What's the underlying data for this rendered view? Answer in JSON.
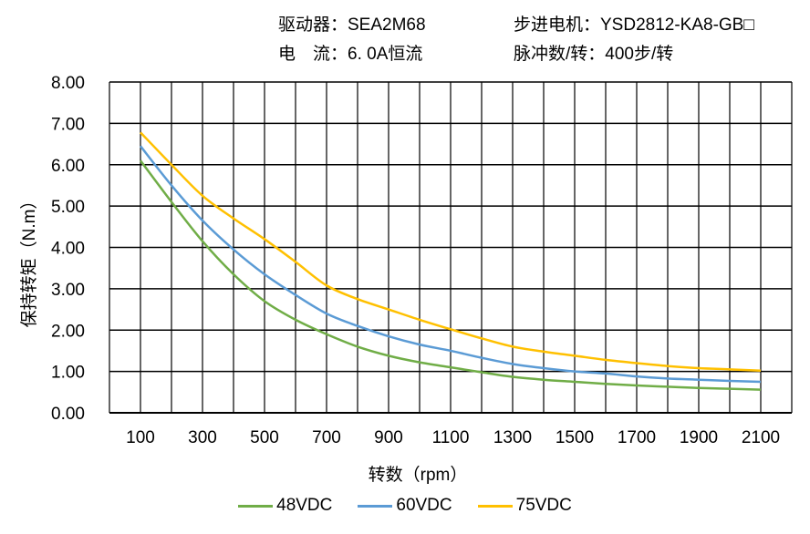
{
  "header": {
    "driver": "驱动器：SEA2M68",
    "motor": "步进电机：YSD2812-KA8-GB□",
    "current": "电　流：6. 0A恒流",
    "pulses": "脉冲数/转：400步/转"
  },
  "chart_data": {
    "type": "line",
    "title": "",
    "xlabel": "转数（rpm）",
    "ylabel": "保持转矩（N.m）",
    "xlim": [
      0,
      2200
    ],
    "ylim": [
      0,
      8
    ],
    "grid": true,
    "legend": "bottom",
    "x_ticks": [
      "100",
      "300",
      "500",
      "700",
      "900",
      "1100",
      "1300",
      "1500",
      "1700",
      "1900",
      "2100"
    ],
    "y_ticks": [
      "0.00",
      "1.00",
      "2.00",
      "3.00",
      "4.00",
      "5.00",
      "6.00",
      "7.00",
      "8.00"
    ],
    "x": [
      100,
      200,
      300,
      400,
      500,
      600,
      700,
      800,
      900,
      1000,
      1100,
      1200,
      1300,
      1400,
      1500,
      1600,
      1700,
      1800,
      1900,
      2000,
      2100
    ],
    "series": [
      {
        "name": "48VDC",
        "color": "#70AD47",
        "values": [
          6.1,
          5.1,
          4.15,
          3.35,
          2.7,
          2.25,
          1.9,
          1.6,
          1.38,
          1.22,
          1.1,
          0.98,
          0.87,
          0.8,
          0.75,
          0.7,
          0.66,
          0.63,
          0.6,
          0.58,
          0.56
        ]
      },
      {
        "name": "60VDC",
        "color": "#5B9BD5",
        "values": [
          6.45,
          5.5,
          4.65,
          3.95,
          3.35,
          2.85,
          2.4,
          2.1,
          1.85,
          1.65,
          1.5,
          1.33,
          1.18,
          1.08,
          1.0,
          0.95,
          0.88,
          0.83,
          0.8,
          0.77,
          0.75
        ]
      },
      {
        "name": "75VDC",
        "color": "#FFC000",
        "values": [
          6.78,
          6.0,
          5.25,
          4.7,
          4.2,
          3.65,
          3.08,
          2.75,
          2.5,
          2.25,
          2.02,
          1.8,
          1.6,
          1.48,
          1.38,
          1.28,
          1.2,
          1.13,
          1.08,
          1.05,
          1.02
        ]
      }
    ]
  }
}
